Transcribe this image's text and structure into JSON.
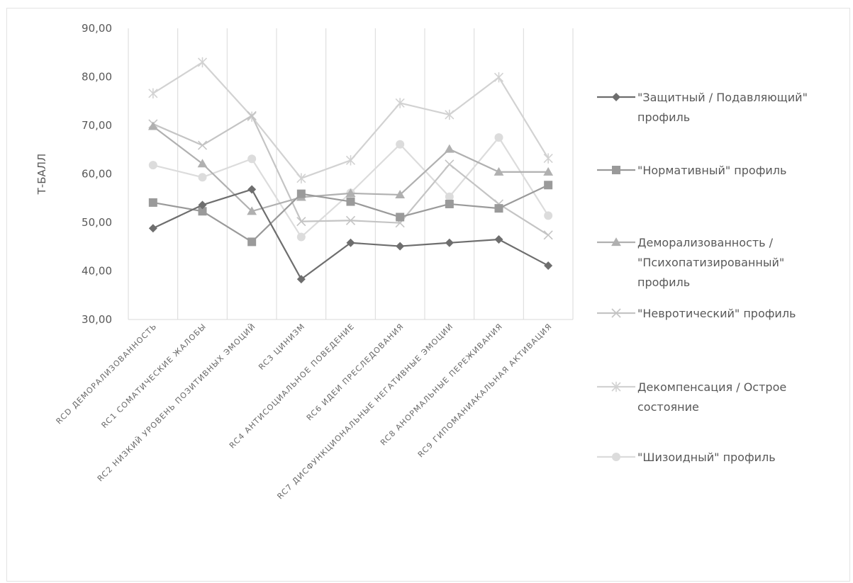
{
  "chart_data": {
    "type": "line",
    "title": "",
    "ylabel": "Т-БАЛЛ",
    "xlabel": "",
    "ylim": [
      30,
      90
    ],
    "ytick_step": 10,
    "ytick_labels": [
      "30,00",
      "40,00",
      "50,00",
      "60,00",
      "70,00",
      "80,00",
      "90,00"
    ],
    "grid": "vertical",
    "legend_position": "right",
    "categories": [
      "RCD ДЕМОРАЛИЗОВАННОСТЬ",
      "RC1 СОМАТИЧЕСКИЕ ЖАЛОБЫ",
      "RC2 НИЗКИЙ УРОВЕНЬ ПОЗИТИВНЫХ ЭМОЦИЙ",
      "RC3 ЦИНИЗМ",
      "RC4 АНТИСОЦИАЛЬНОЕ ПОВЕДЕНИЕ",
      "RC6 ИДЕИ ПРЕСЛЕДОВАНИЯ",
      "RC7 ДИСФУНКЦИОНАЛЬНЫЕ НЕГАТИВНЫЕ ЭМОЦИИ",
      "RC8 АНОРМАЛЬНЫЕ ПЕРЕЖИВАНИЯ",
      "RC9 ГИПОМАНИАКАЛЬНАЯ АКТИВАЦИЯ"
    ],
    "series": [
      {
        "name_lines": [
          "\"Защитный / Подавляющий\"",
          "профиль"
        ],
        "marker": "diamond",
        "color": "#6e6e6e",
        "values": [
          48.8,
          53.6,
          56.8,
          38.3,
          45.8,
          45.1,
          45.8,
          46.5,
          41.1
        ]
      },
      {
        "name_lines": [
          "\"Нормативный\" профиль"
        ],
        "marker": "square",
        "color": "#9a9a9a",
        "values": [
          54.1,
          52.3,
          46.0,
          55.9,
          54.3,
          51.1,
          53.8,
          52.9,
          57.7
        ]
      },
      {
        "name_lines": [
          "Деморализованность /",
          "\"Психопатизированный\"",
          "профиль"
        ],
        "marker": "triangle",
        "color": "#b0b0b0",
        "values": [
          69.8,
          62.1,
          52.3,
          55.2,
          56.0,
          55.7,
          65.1,
          60.4,
          60.4
        ]
      },
      {
        "name_lines": [
          "\"Невротический\" профиль"
        ],
        "marker": "x",
        "color": "#c4c4c4",
        "values": [
          70.3,
          65.9,
          72.0,
          50.2,
          50.4,
          49.9,
          62.0,
          53.8,
          47.4
        ]
      },
      {
        "name_lines": [
          "Декомпенсация / Острое",
          "состояние"
        ],
        "marker": "star",
        "color": "#d2d2d2",
        "values": [
          76.6,
          83.0,
          71.8,
          59.1,
          62.8,
          74.6,
          72.2,
          79.9,
          63.2
        ]
      },
      {
        "name_lines": [
          "\"Шизоидный\" профиль"
        ],
        "marker": "circle",
        "color": "#dcdcdc",
        "values": [
          61.8,
          59.3,
          63.1,
          47.0,
          56.1,
          66.1,
          55.3,
          67.5,
          51.4
        ]
      }
    ]
  }
}
